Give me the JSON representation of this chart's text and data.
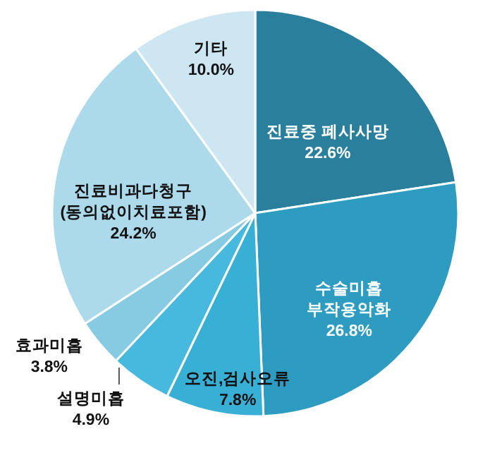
{
  "chart_data": {
    "type": "pie",
    "categories": [
      "진료중 폐사사망",
      "수술미흡\n부작용악화",
      "오진,검사오류",
      "설명미흡",
      "효과미흡",
      "진료비과다청구\n(동의없이치료포함)",
      "기타"
    ],
    "values": [
      22.6,
      26.8,
      7.8,
      4.9,
      3.8,
      24.2,
      10.0
    ],
    "value_labels": [
      "22.6%",
      "26.8%",
      "7.8%",
      "4.9%",
      "3.8%",
      "24.2%",
      "10.0%"
    ],
    "colors": [
      "#2a7f9c",
      "#2e9cc0",
      "#38b0d6",
      "#48b9de",
      "#86cbe2",
      "#acdaeb",
      "#cce7f1"
    ],
    "legend": false
  }
}
